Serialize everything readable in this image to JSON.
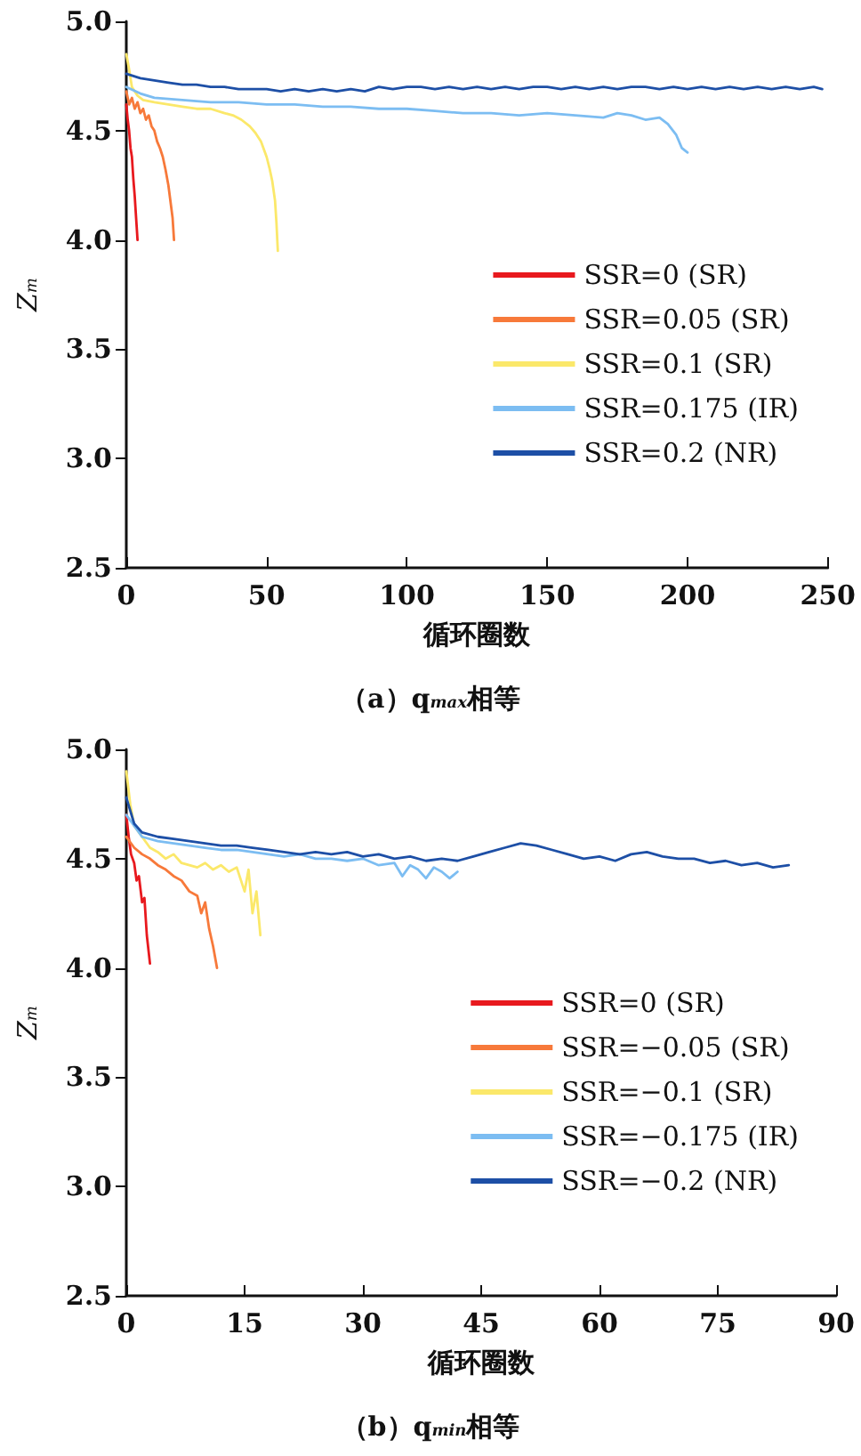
{
  "chart_data": [
    {
      "type": "line",
      "title": "（a）q$_{max}$相等",
      "xlabel": "循环圈数",
      "ylabel": "Z$_{m}$",
      "xlim": [
        0,
        250
      ],
      "xticks": [
        0,
        50,
        100,
        150,
        200,
        250
      ],
      "ylim": [
        2.5,
        5.0
      ],
      "yticks": [
        2.5,
        {
          "value": 3,
          "label": "3.0"
        },
        3.5,
        {
          "value": 4,
          "label": "4.0"
        },
        4.5,
        {
          "value": 5,
          "label": "5.0"
        }
      ],
      "grid": false,
      "legend": "right",
      "marker": "none",
      "line_style": "solid",
      "series": [
        {
          "name": "SSR=0 (SR)",
          "color": "#e8191e",
          "x": [
            0,
            0.5,
            1,
            1.5,
            2,
            2.5,
            3,
            3.5,
            4
          ],
          "values": [
            4.62,
            4.55,
            4.5,
            4.42,
            4.38,
            4.28,
            4.2,
            4.1,
            4.0
          ]
        },
        {
          "name": "SSR=0.05 (SR)",
          "color": "#f7793a",
          "x": [
            0,
            1,
            2,
            3,
            4,
            5,
            6,
            7,
            8,
            9,
            10,
            11,
            12,
            13,
            14,
            15,
            16,
            16.5,
            17
          ],
          "values": [
            4.68,
            4.62,
            4.65,
            4.6,
            4.63,
            4.58,
            4.6,
            4.55,
            4.57,
            4.52,
            4.5,
            4.45,
            4.42,
            4.38,
            4.32,
            4.25,
            4.15,
            4.1,
            4.0
          ]
        },
        {
          "name": "SSR=0.1 (SR)",
          "color": "#fbe86a",
          "x": [
            0,
            1,
            2,
            4,
            6,
            10,
            15,
            20,
            25,
            30,
            35,
            38,
            41,
            44,
            46,
            48,
            50,
            51,
            52,
            53,
            53.5,
            54
          ],
          "values": [
            4.85,
            4.78,
            4.7,
            4.66,
            4.64,
            4.63,
            4.62,
            4.61,
            4.6,
            4.6,
            4.58,
            4.57,
            4.55,
            4.52,
            4.49,
            4.45,
            4.38,
            4.33,
            4.27,
            4.18,
            4.08,
            3.95
          ]
        },
        {
          "name": "SSR=0.175 (IR)",
          "color": "#7cbdf2",
          "x": [
            0,
            5,
            10,
            20,
            30,
            40,
            50,
            60,
            70,
            80,
            90,
            100,
            110,
            120,
            130,
            140,
            150,
            160,
            170,
            175,
            180,
            185,
            190,
            193,
            196,
            198,
            200
          ],
          "values": [
            4.7,
            4.67,
            4.65,
            4.64,
            4.63,
            4.63,
            4.62,
            4.62,
            4.61,
            4.61,
            4.6,
            4.6,
            4.59,
            4.58,
            4.58,
            4.57,
            4.58,
            4.57,
            4.56,
            4.58,
            4.57,
            4.55,
            4.56,
            4.53,
            4.48,
            4.42,
            4.4
          ]
        },
        {
          "name": "SSR=0.2 (NR)",
          "color": "#1d4fa6",
          "x": [
            0,
            5,
            10,
            15,
            20,
            25,
            30,
            35,
            40,
            45,
            50,
            55,
            60,
            65,
            70,
            75,
            80,
            85,
            90,
            95,
            100,
            105,
            110,
            115,
            120,
            125,
            130,
            135,
            140,
            145,
            150,
            155,
            160,
            165,
            170,
            175,
            180,
            185,
            190,
            195,
            200,
            205,
            210,
            215,
            220,
            225,
            230,
            235,
            240,
            245,
            248
          ],
          "values": [
            4.76,
            4.74,
            4.73,
            4.72,
            4.71,
            4.71,
            4.7,
            4.7,
            4.69,
            4.69,
            4.69,
            4.68,
            4.69,
            4.68,
            4.69,
            4.68,
            4.69,
            4.68,
            4.7,
            4.69,
            4.7,
            4.7,
            4.69,
            4.7,
            4.69,
            4.7,
            4.69,
            4.7,
            4.69,
            4.7,
            4.7,
            4.69,
            4.7,
            4.69,
            4.7,
            4.69,
            4.7,
            4.7,
            4.69,
            4.7,
            4.69,
            4.7,
            4.69,
            4.7,
            4.69,
            4.7,
            4.69,
            4.7,
            4.69,
            4.7,
            4.69
          ]
        }
      ]
    },
    {
      "type": "line",
      "title": "（b）q$_{min}$相等",
      "xlabel": "循环圈数",
      "ylabel": "Z$_{m}$",
      "xlim": [
        0,
        90
      ],
      "xticks": [
        0,
        15,
        30,
        45,
        60,
        75,
        90
      ],
      "ylim": [
        2.5,
        5.0
      ],
      "yticks": [
        2.5,
        {
          "value": 3,
          "label": "3.0"
        },
        3.5,
        {
          "value": 4,
          "label": "4.0"
        },
        4.5,
        {
          "value": 5,
          "label": "5.0"
        }
      ],
      "grid": false,
      "legend": "right",
      "marker": "none",
      "line_style": "solid",
      "series": [
        {
          "name": "SSR=0 (SR)",
          "color": "#e8191e",
          "x": [
            0,
            0.3,
            0.6,
            1,
            1.3,
            1.6,
            2,
            2.3,
            2.6,
            3
          ],
          "values": [
            4.7,
            4.6,
            4.52,
            4.48,
            4.4,
            4.42,
            4.3,
            4.32,
            4.15,
            4.02
          ]
        },
        {
          "name": "SSR=−0.05 (SR)",
          "color": "#f7793a",
          "x": [
            0,
            1,
            2,
            3,
            4,
            5,
            6,
            7,
            8,
            9,
            9.5,
            10,
            10.5,
            11,
            11.5
          ],
          "values": [
            4.6,
            4.55,
            4.52,
            4.5,
            4.47,
            4.45,
            4.42,
            4.4,
            4.35,
            4.33,
            4.25,
            4.3,
            4.18,
            4.1,
            4.0
          ]
        },
        {
          "name": "SSR=−0.1 (SR)",
          "color": "#fbe86a",
          "x": [
            0,
            0.5,
            1,
            2,
            3,
            4,
            5,
            6,
            7,
            8,
            9,
            10,
            11,
            12,
            13,
            14,
            15,
            15.5,
            16,
            16.5,
            17
          ],
          "values": [
            4.9,
            4.75,
            4.65,
            4.6,
            4.55,
            4.53,
            4.5,
            4.52,
            4.48,
            4.47,
            4.46,
            4.48,
            4.45,
            4.47,
            4.44,
            4.46,
            4.35,
            4.45,
            4.25,
            4.35,
            4.15
          ]
        },
        {
          "name": "SSR=−0.175 (IR)",
          "color": "#7cbdf2",
          "x": [
            0,
            2,
            4,
            6,
            8,
            10,
            12,
            14,
            16,
            18,
            20,
            22,
            24,
            26,
            28,
            30,
            32,
            34,
            35,
            36,
            37,
            38,
            39,
            40,
            41,
            42
          ],
          "values": [
            4.7,
            4.6,
            4.58,
            4.57,
            4.56,
            4.55,
            4.54,
            4.54,
            4.53,
            4.52,
            4.51,
            4.52,
            4.5,
            4.5,
            4.49,
            4.5,
            4.47,
            4.48,
            4.42,
            4.47,
            4.45,
            4.41,
            4.46,
            4.44,
            4.41,
            4.44
          ]
        },
        {
          "name": "SSR=−0.2 (NR)",
          "color": "#1d4fa6",
          "x": [
            0,
            1,
            2,
            4,
            6,
            8,
            10,
            12,
            14,
            16,
            18,
            20,
            22,
            24,
            26,
            28,
            30,
            32,
            34,
            36,
            38,
            40,
            42,
            44,
            46,
            48,
            50,
            52,
            54,
            56,
            58,
            60,
            62,
            64,
            66,
            68,
            70,
            72,
            74,
            76,
            78,
            80,
            82,
            84
          ],
          "values": [
            4.78,
            4.66,
            4.62,
            4.6,
            4.59,
            4.58,
            4.57,
            4.56,
            4.56,
            4.55,
            4.54,
            4.53,
            4.52,
            4.53,
            4.52,
            4.53,
            4.51,
            4.52,
            4.5,
            4.51,
            4.49,
            4.5,
            4.49,
            4.51,
            4.53,
            4.55,
            4.57,
            4.56,
            4.54,
            4.52,
            4.5,
            4.51,
            4.49,
            4.52,
            4.53,
            4.51,
            4.5,
            4.5,
            4.48,
            4.49,
            4.47,
            4.48,
            4.46,
            4.47
          ]
        }
      ]
    }
  ]
}
